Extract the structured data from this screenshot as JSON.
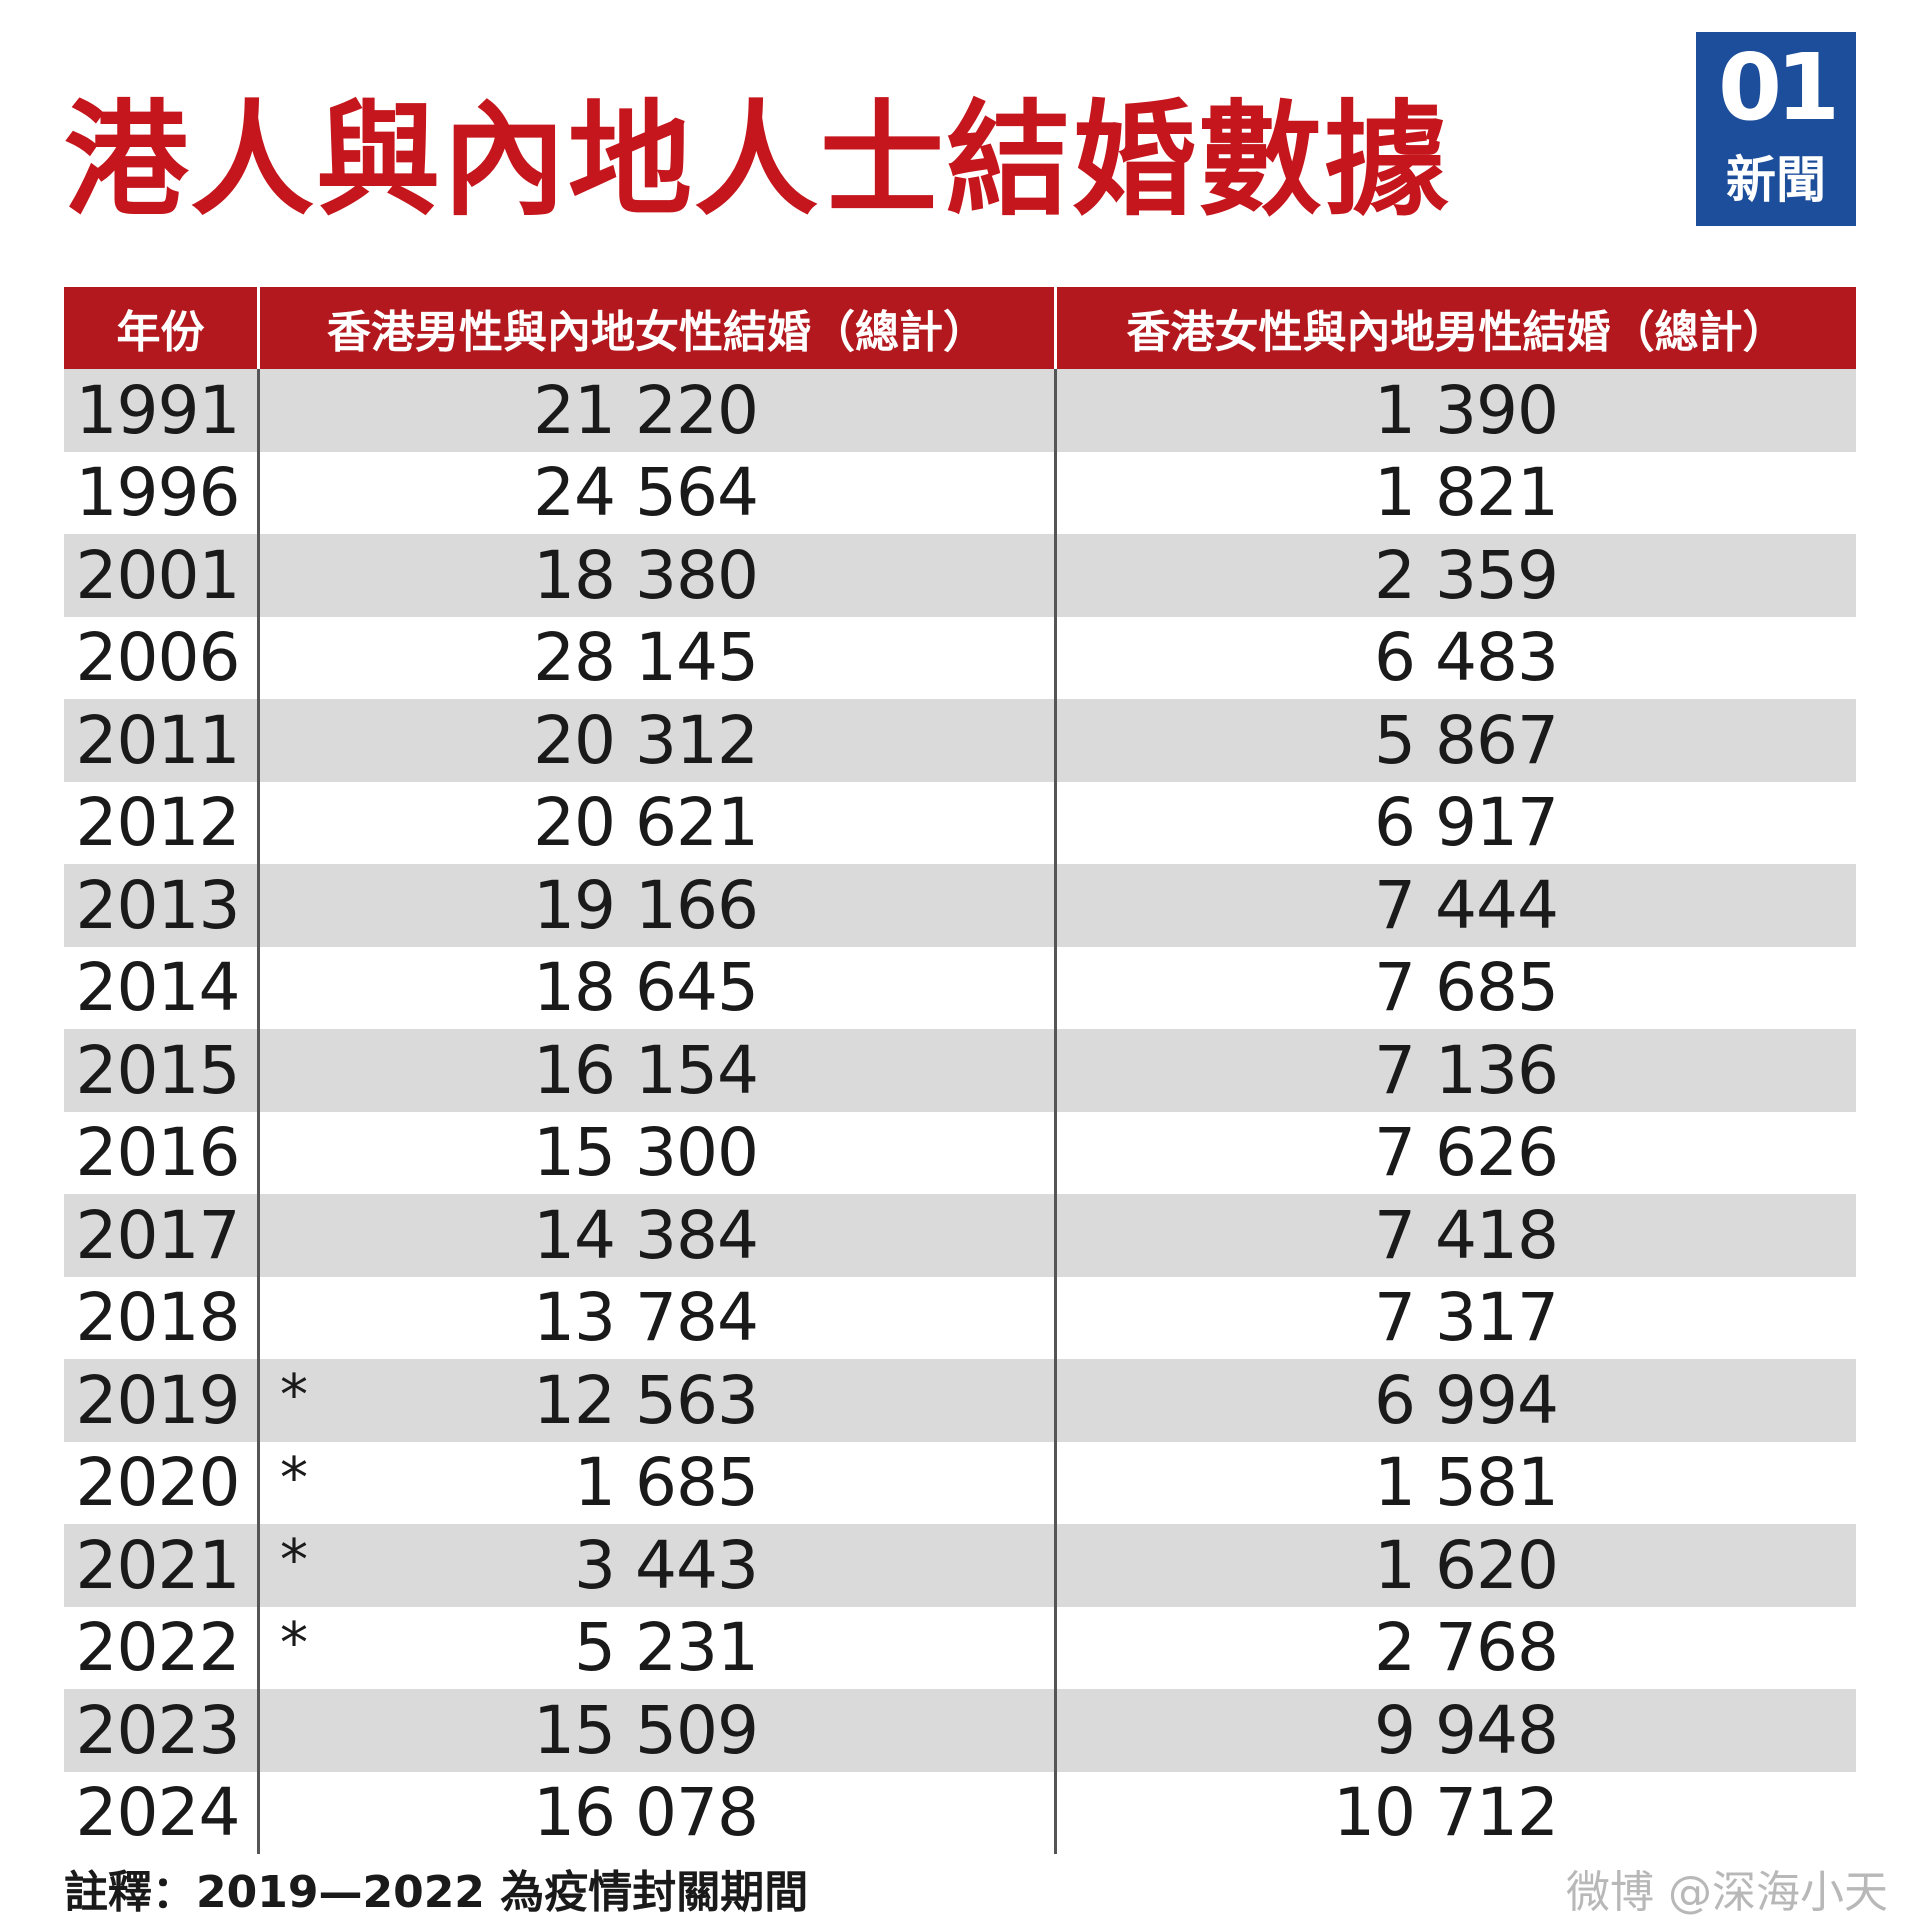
{
  "title": "港人與內地人士結婚數據",
  "logo": {
    "mark": "01",
    "text": "新聞"
  },
  "table": {
    "headers": [
      "年份",
      "香港男性與內地女性結婚（總計）",
      "香港女性與內地男性結婚（總計）"
    ],
    "rows": [
      {
        "year": "1991",
        "star": "",
        "men": "21 220",
        "women": "1 390"
      },
      {
        "year": "1996",
        "star": "",
        "men": "24 564",
        "women": "1 821"
      },
      {
        "year": "2001",
        "star": "",
        "men": "18 380",
        "women": "2 359"
      },
      {
        "year": "2006",
        "star": "",
        "men": "28 145",
        "women": "6 483"
      },
      {
        "year": "2011",
        "star": "",
        "men": "20 312",
        "women": "5 867"
      },
      {
        "year": "2012",
        "star": "",
        "men": "20 621",
        "women": "6 917"
      },
      {
        "year": "2013",
        "star": "",
        "men": "19 166",
        "women": "7 444"
      },
      {
        "year": "2014",
        "star": "",
        "men": "18 645",
        "women": "7 685"
      },
      {
        "year": "2015",
        "star": "",
        "men": "16 154",
        "women": "7 136"
      },
      {
        "year": "2016",
        "star": "",
        "men": "15 300",
        "women": "7 626"
      },
      {
        "year": "2017",
        "star": "",
        "men": "14 384",
        "women": "7 418"
      },
      {
        "year": "2018",
        "star": "",
        "men": "13 784",
        "women": "7 317"
      },
      {
        "year": "2019",
        "star": "*",
        "men": "12 563",
        "women": "6 994"
      },
      {
        "year": "2020",
        "star": "*",
        "men": "1 685",
        "women": "1 581"
      },
      {
        "year": "2021",
        "star": "*",
        "men": "3 443",
        "women": "1 620"
      },
      {
        "year": "2022",
        "star": "*",
        "men": "5 231",
        "women": "2 768"
      },
      {
        "year": "2023",
        "star": "",
        "men": "15 509",
        "women": "9 948"
      },
      {
        "year": "2024",
        "star": "",
        "men": "16 078",
        "women": "10 712"
      }
    ]
  },
  "footnote": "註釋：2019—2022 為疫情封關期間",
  "watermark": "微博 @深海小天",
  "colors": {
    "title_red": "#c4161c",
    "header_red": "#b3181e",
    "logo_blue": "#1d4e9b",
    "row_shade": "#dadada"
  }
}
